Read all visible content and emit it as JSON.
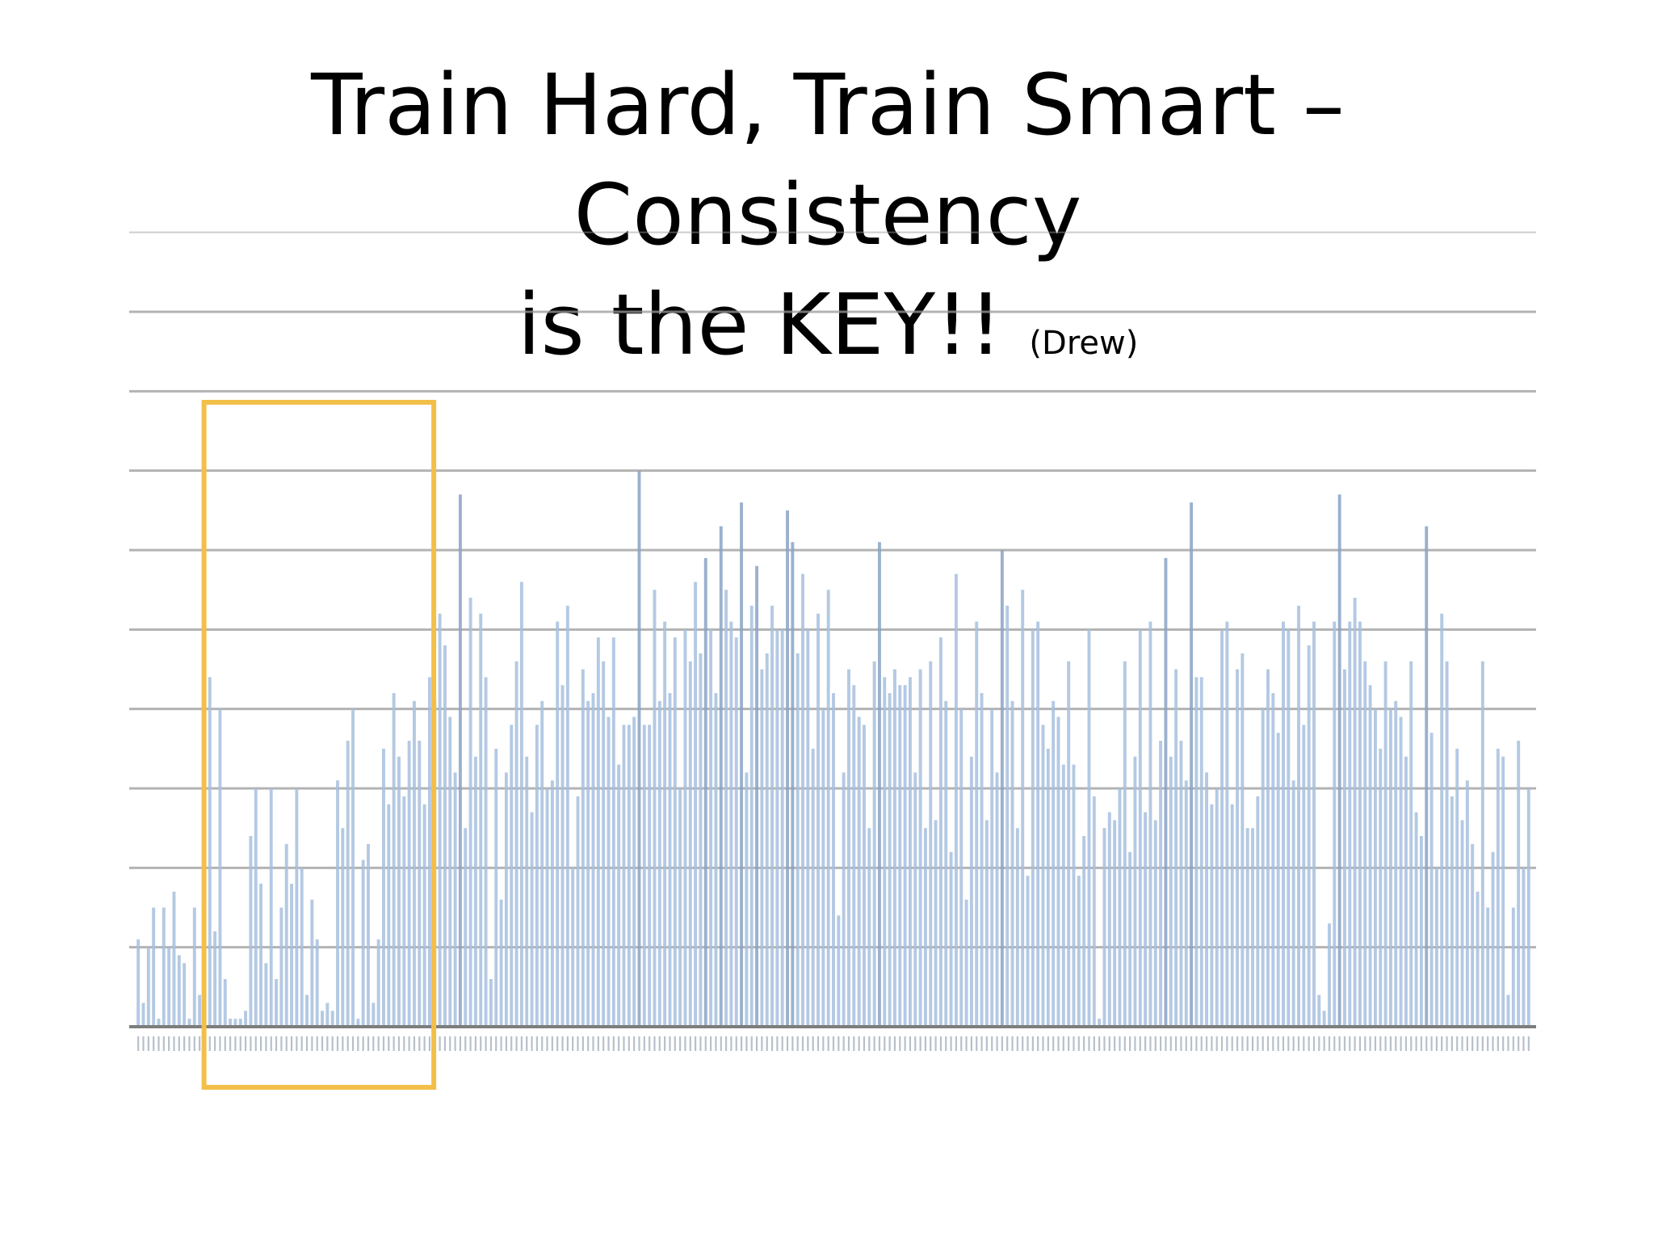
{
  "slide": {
    "title_line1": "Train Hard, Train Smart – Consistency",
    "title_line2": "is the KEY!!",
    "title_note": "(Drew)"
  },
  "colors": {
    "bar": "#a7c0de",
    "bar_dark": "#8aa3c4",
    "grid": "#9a9a9a",
    "highlight_box": "#f2bf4a",
    "background": "#ffffff"
  },
  "chart_data": {
    "type": "bar",
    "title": "",
    "xlabel": "",
    "ylabel": "",
    "grid": true,
    "gridline_count": 10,
    "ylim": [
      0,
      9
    ],
    "highlighted_range": [
      14,
      58
    ],
    "series": [
      {
        "values": [
          1.1,
          0.3,
          1.0,
          1.5,
          0.1,
          1.5,
          1.0,
          1.7,
          0.9,
          0.8,
          0.1,
          1.5,
          0.4,
          1.2,
          4.4,
          1.2,
          4.0,
          0.6,
          0.1,
          0.1,
          0.1,
          0.2,
          2.4,
          3.0,
          1.8,
          0.8,
          3.0,
          0.6,
          1.5,
          2.3,
          1.8,
          3.0,
          2.0,
          0.4,
          1.6,
          1.1,
          0.2,
          0.3,
          0.2,
          3.1,
          2.5,
          3.6,
          4.0,
          0.1,
          2.1,
          2.3,
          0.3,
          1.1,
          3.5,
          2.8,
          4.2,
          3.4,
          2.9,
          3.6,
          4.1,
          3.6,
          2.8,
          4.4,
          4.1,
          5.2,
          4.8,
          3.9,
          3.2,
          6.7,
          2.5,
          5.4,
          3.4,
          5.2,
          4.4,
          0.6,
          3.5,
          1.6,
          3.2,
          3.8,
          4.6,
          5.6,
          3.4,
          2.7,
          3.8,
          4.1,
          3.0,
          3.1,
          5.1,
          4.3,
          5.3,
          2.0,
          2.9,
          4.5,
          4.1,
          4.2,
          4.9,
          4.6,
          3.9,
          4.9,
          3.3,
          3.8,
          3.8,
          3.9,
          7.0,
          3.8,
          3.8,
          5.5,
          4.1,
          5.1,
          4.2,
          4.9,
          3.0,
          5.0,
          4.6,
          5.6,
          4.7,
          5.9,
          5.0,
          4.2,
          6.3,
          5.5,
          5.1,
          4.9,
          6.6,
          3.2,
          5.3,
          5.8,
          4.5,
          4.7,
          5.3,
          5.0,
          5.0,
          6.5,
          6.1,
          4.7,
          5.7,
          5.0,
          3.5,
          5.2,
          4.0,
          5.5,
          4.2,
          1.4,
          3.2,
          4.5,
          4.3,
          3.9,
          3.8,
          2.5,
          4.6,
          6.1,
          4.4,
          4.2,
          4.5,
          4.3,
          4.3,
          4.4,
          3.2,
          4.5,
          2.5,
          4.6,
          2.6,
          4.9,
          4.1,
          2.2,
          5.7,
          4.0,
          1.6,
          3.4,
          5.1,
          4.2,
          2.6,
          4.0,
          3.2,
          6.0,
          5.3,
          4.1,
          2.5,
          5.5,
          1.9,
          5.0,
          5.1,
          3.8,
          3.5,
          4.1,
          3.9,
          3.3,
          4.6,
          3.3,
          1.9,
          2.4,
          5.0,
          2.9,
          0.1,
          2.5,
          2.7,
          2.6,
          3.0,
          4.6,
          2.2,
          3.4,
          5.0,
          2.7,
          5.1,
          2.6,
          3.6,
          5.9,
          3.4,
          4.5,
          3.6,
          3.1,
          6.6,
          4.4,
          4.4,
          3.2,
          2.8,
          3.0,
          5.0,
          5.1,
          2.8,
          4.5,
          4.7,
          2.5,
          2.5,
          2.9,
          4.0,
          4.5,
          4.2,
          3.7,
          5.1,
          5.0,
          3.1,
          5.3,
          3.8,
          4.8,
          5.1,
          0.4,
          0.2,
          1.3,
          5.1,
          6.7,
          4.5,
          5.1,
          5.4,
          5.1,
          4.6,
          4.3,
          4.0,
          3.5,
          4.6,
          4.0,
          4.1,
          3.9,
          3.4,
          4.6,
          2.7,
          2.4,
          6.3,
          3.7,
          2.0,
          5.2,
          4.6,
          2.9,
          3.5,
          2.6,
          3.1,
          2.3,
          1.7,
          4.6,
          1.5,
          2.2,
          3.5,
          3.4,
          0.4,
          1.5,
          3.6,
          2.0,
          3.0
        ]
      }
    ]
  }
}
